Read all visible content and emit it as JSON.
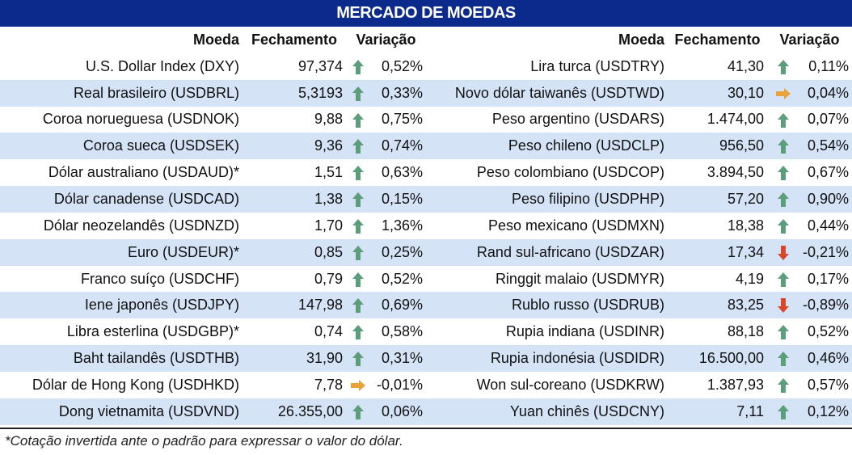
{
  "title": "MERCADO DE MOEDAS",
  "headers": {
    "currency": "Moeda",
    "close": "Fechamento",
    "change": "Variação"
  },
  "left": [
    {
      "name": "U.S. Dollar Index (DXY)",
      "close": "97,374",
      "trend": "up",
      "change": "0,52%"
    },
    {
      "name": "Real brasileiro (USDBRL)",
      "close": "5,3193",
      "trend": "up",
      "change": "0,33%"
    },
    {
      "name": "Coroa norueguesa (USDNOK)",
      "close": "9,88",
      "trend": "up",
      "change": "0,75%"
    },
    {
      "name": "Coroa sueca (USDSEK)",
      "close": "9,36",
      "trend": "up",
      "change": "0,74%"
    },
    {
      "name": "Dólar australiano (USDAUD)*",
      "close": "1,51",
      "trend": "up",
      "change": "0,63%"
    },
    {
      "name": "Dólar canadense (USDCAD)",
      "close": "1,38",
      "trend": "up",
      "change": "0,15%"
    },
    {
      "name": "Dólar neozelandês (USDNZD)",
      "close": "1,70",
      "trend": "up",
      "change": "1,36%"
    },
    {
      "name": "Euro (USDEUR)*",
      "close": "0,85",
      "trend": "up",
      "change": "0,25%"
    },
    {
      "name": "Franco suíço (USDCHF)",
      "close": "0,79",
      "trend": "up",
      "change": "0,52%"
    },
    {
      "name": "Iene japonês (USDJPY)",
      "close": "147,98",
      "trend": "up",
      "change": "0,69%"
    },
    {
      "name": "Libra esterlina (USDGBP)*",
      "close": "0,74",
      "trend": "up",
      "change": "0,58%"
    },
    {
      "name": "Baht tailandês (USDTHB)",
      "close": "31,90",
      "trend": "up",
      "change": "0,31%"
    },
    {
      "name": "Dólar de Hong Kong (USDHKD)",
      "close": "7,78",
      "trend": "flat",
      "change": "-0,01%"
    },
    {
      "name": "Dong vietnamita (USDVND)",
      "close": "26.355,00",
      "trend": "up",
      "change": "0,06%"
    }
  ],
  "right": [
    {
      "name": "Lira turca (USDTRY)",
      "close": "41,30",
      "trend": "up",
      "change": "0,11%"
    },
    {
      "name": "Novo dólar taiwanês (USDTWD)",
      "close": "30,10",
      "trend": "flat",
      "change": "0,04%"
    },
    {
      "name": "Peso argentino (USDARS)",
      "close": "1.474,00",
      "trend": "up",
      "change": "0,07%"
    },
    {
      "name": "Peso chileno (USDCLP)",
      "close": "956,50",
      "trend": "up",
      "change": "0,54%"
    },
    {
      "name": "Peso colombiano (USDCOP)",
      "close": "3.894,50",
      "trend": "up",
      "change": "0,67%"
    },
    {
      "name": "Peso filipino (USDPHP)",
      "close": "57,20",
      "trend": "up",
      "change": "0,90%"
    },
    {
      "name": "Peso mexicano (USDMXN)",
      "close": "18,38",
      "trend": "up",
      "change": "0,44%"
    },
    {
      "name": "Rand sul-africano (USDZAR)",
      "close": "17,34",
      "trend": "down",
      "change": "-0,21%"
    },
    {
      "name": "Ringgit malaio (USDMYR)",
      "close": "4,19",
      "trend": "up",
      "change": "0,17%"
    },
    {
      "name": "Rublo russo (USDRUB)",
      "close": "83,25",
      "trend": "down",
      "change": "-0,89%"
    },
    {
      "name": "Rupia indiana (USDINR)",
      "close": "88,18",
      "trend": "up",
      "change": "0,52%"
    },
    {
      "name": "Rupia indonésia (USDIDR)",
      "close": "16.500,00",
      "trend": "up",
      "change": "0,46%"
    },
    {
      "name": "Won sul-coreano (USDKRW)",
      "close": "1.387,93",
      "trend": "up",
      "change": "0,57%"
    },
    {
      "name": "Yuan chinês (USDCNY)",
      "close": "7,11",
      "trend": "up",
      "change": "0,12%"
    }
  ],
  "colors": {
    "up": "#5c9e7c",
    "flat": "#e8a33c",
    "down": "#d9472b",
    "title_bg": "#0b2a8c",
    "stripe": "#d5e3f7"
  },
  "footnote": "*Cotação invertida ante o padrão para expressar o valor do dólar."
}
